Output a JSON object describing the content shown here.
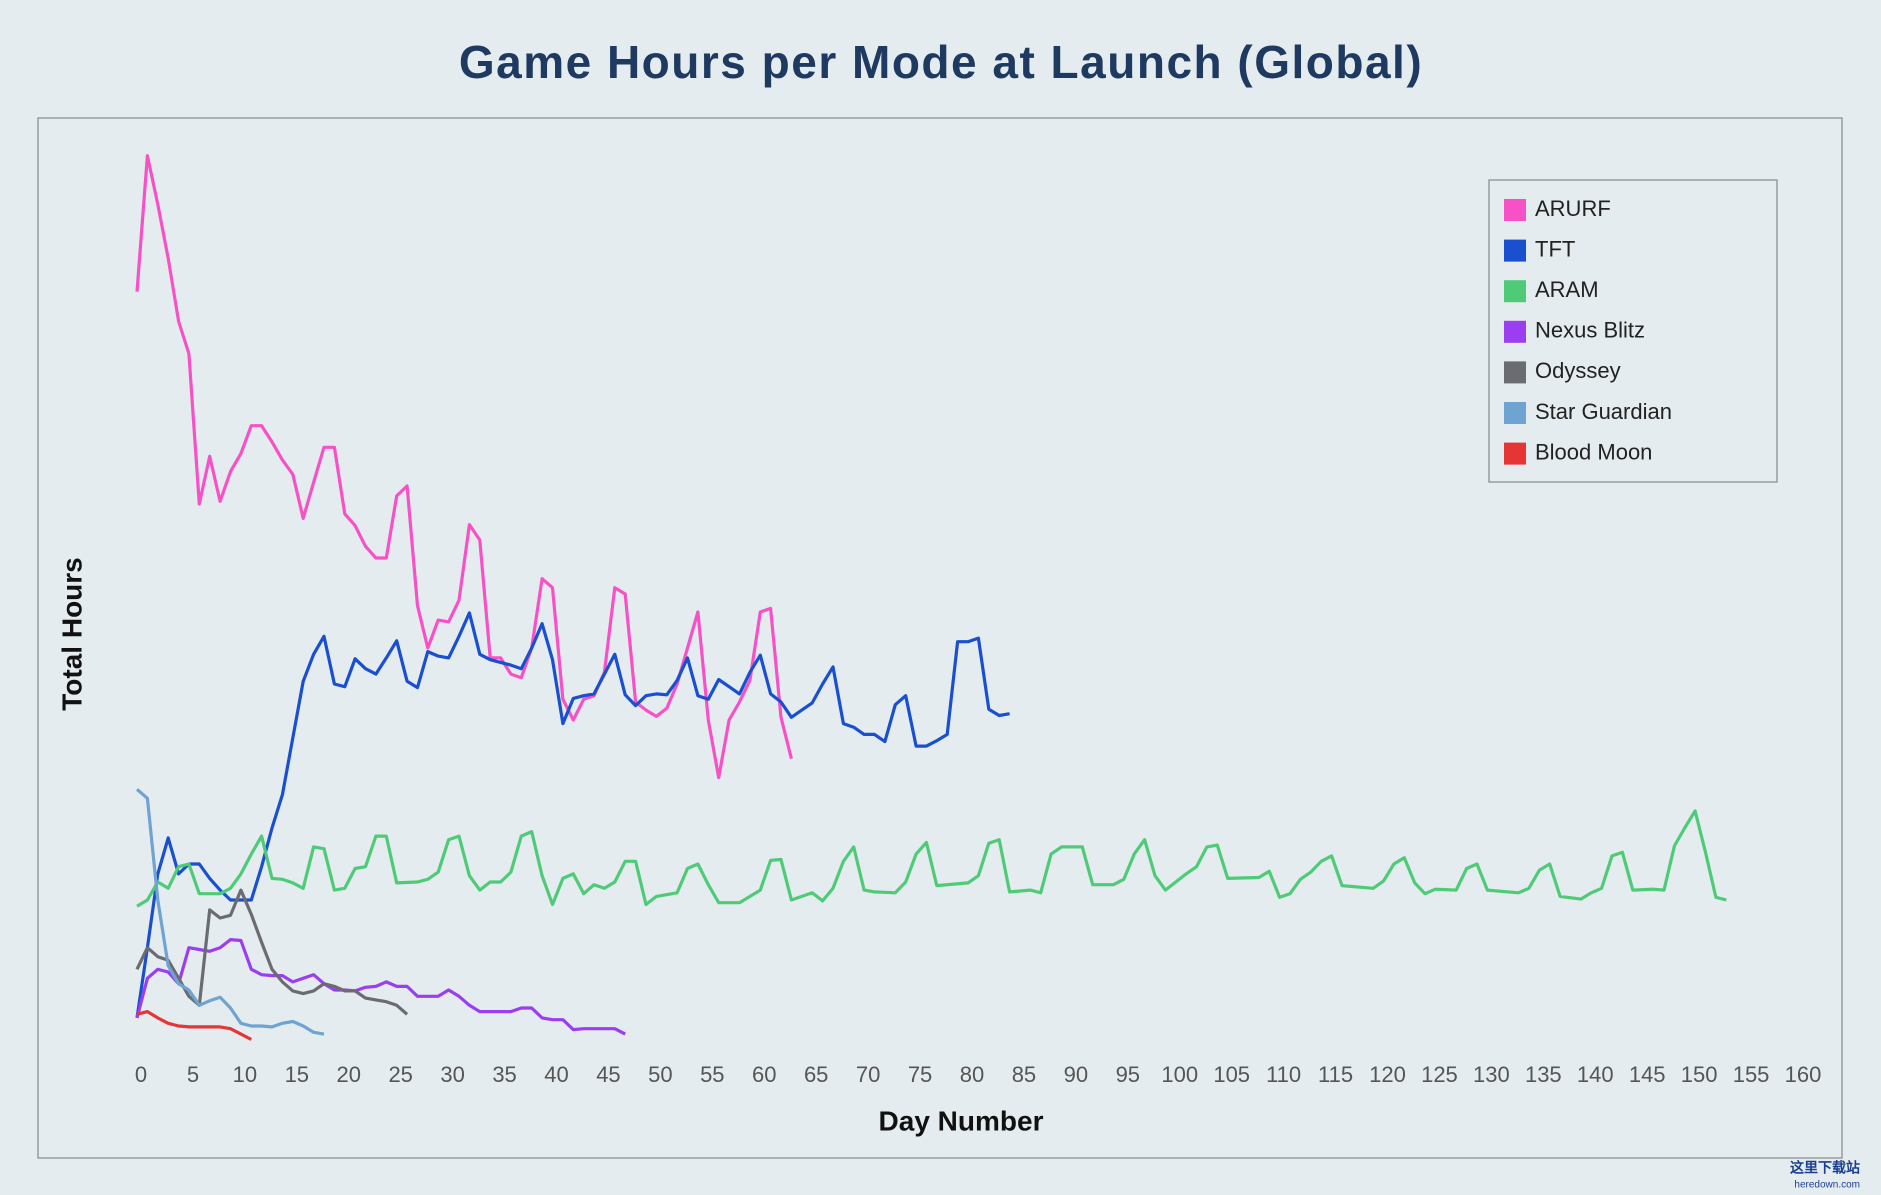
{
  "chart_data": {
    "type": "line",
    "title": "Game Hours per Mode at Launch (Global)",
    "x_label": "Day Number",
    "y_label": "Total Hours",
    "xlim": [
      0,
      160
    ],
    "ylim": [
      0,
      100
    ],
    "xticks": [
      0,
      5,
      10,
      15,
      20,
      25,
      30,
      35,
      40,
      45,
      50,
      55,
      60,
      65,
      70,
      75,
      80,
      85,
      90,
      95,
      100,
      105,
      110,
      115,
      120,
      125,
      130,
      135,
      140,
      145,
      150,
      155,
      160
    ],
    "grid": false,
    "legend": "upper right",
    "series": [
      {
        "name": "ARURF",
        "color": "#f752c5",
        "x": [
          0,
          1,
          2,
          3,
          4,
          5,
          6,
          7,
          8,
          9,
          10,
          11,
          12,
          13,
          14,
          15,
          16,
          17,
          18,
          19,
          20,
          21,
          22,
          23,
          24,
          25,
          26,
          27,
          28,
          29,
          30,
          31,
          32,
          33,
          34,
          35,
          36,
          37,
          38,
          39,
          40,
          41,
          42,
          43,
          44,
          45,
          46,
          47,
          48,
          49,
          50,
          51,
          52,
          53,
          54,
          55,
          56,
          57,
          58,
          59,
          60,
          61,
          62,
          63
        ],
        "values": [
          83.6,
          98.7,
          93.3,
          87.3,
          80.3,
          76.7,
          60,
          65.3,
          60.3,
          63.6,
          65.6,
          68.7,
          68.7,
          66.9,
          64.9,
          63.3,
          58.4,
          62.4,
          66.3,
          66.3,
          58.9,
          57.6,
          55.3,
          54,
          54,
          60.9,
          62,
          48.7,
          44,
          47.1,
          46.9,
          49.3,
          57.7,
          56,
          42.9,
          42.9,
          41.1,
          40.7,
          44,
          51.7,
          50.7,
          38.3,
          36,
          38.3,
          38.7,
          41.3,
          50.7,
          50,
          38,
          37.1,
          36.4,
          37.3,
          40,
          44,
          48,
          36,
          29.6,
          36,
          38,
          40.4,
          48,
          48.4,
          36.3,
          31.7
        ]
      },
      {
        "name": "TFT",
        "color": "#1a4fcf",
        "x": [
          0,
          1,
          2,
          3,
          4,
          5,
          6,
          7,
          8,
          9,
          10,
          11,
          12,
          13,
          14,
          15,
          16,
          17,
          18,
          19,
          20,
          21,
          22,
          23,
          24,
          25,
          26,
          27,
          28,
          29,
          30,
          31,
          32,
          33,
          34,
          35,
          36,
          37,
          38,
          39,
          40,
          41,
          42,
          43,
          44,
          45,
          46,
          47,
          48,
          49,
          50,
          51,
          52,
          53,
          54,
          55,
          56,
          57,
          58,
          59,
          60,
          61,
          62,
          63,
          64,
          65,
          66,
          67,
          68,
          69,
          70,
          71,
          72,
          73,
          74,
          75,
          76,
          77,
          78,
          79,
          80,
          81,
          82,
          83,
          84
        ],
        "values": [
          2.9,
          10.7,
          18.9,
          22.9,
          18.9,
          20,
          20,
          18.4,
          17.1,
          16,
          16,
          16,
          19.7,
          24,
          27.7,
          34,
          40.3,
          43.3,
          45.3,
          40,
          39.7,
          42.8,
          41.7,
          41.1,
          42.9,
          44.8,
          40.3,
          39.6,
          43.6,
          43.1,
          42.9,
          45.3,
          47.9,
          43.3,
          42.7,
          42.4,
          42.1,
          41.7,
          44,
          46.7,
          42.7,
          35.6,
          38.4,
          38.7,
          38.9,
          41.1,
          43.3,
          38.8,
          37.6,
          38.7,
          38.9,
          38.8,
          40.4,
          42.9,
          38.7,
          38.3,
          40.5,
          39.7,
          38.9,
          41.3,
          43.2,
          38.9,
          38,
          36.3,
          37.1,
          37.9,
          40,
          41.9,
          35.6,
          35.2,
          34.4,
          34.4,
          33.6,
          37.7,
          38.7,
          33.1,
          33.1,
          33.7,
          34.4,
          44.7,
          44.7,
          45.1,
          37.2,
          36.5,
          36.7
        ]
      },
      {
        "name": "ARAM",
        "color": "#4fcb78",
        "x": [
          0,
          1,
          2,
          3,
          4,
          5,
          6,
          7,
          8,
          9,
          10,
          11,
          12,
          13,
          14,
          15,
          16,
          17,
          18,
          19,
          20,
          21,
          22,
          23,
          24,
          25,
          27,
          28,
          29,
          30,
          31,
          32,
          33,
          34,
          35,
          36,
          37,
          38,
          39,
          40,
          41,
          42,
          43,
          44,
          45,
          46,
          47,
          48,
          49,
          50,
          52,
          53,
          54,
          55,
          56,
          58,
          60,
          61,
          62,
          63,
          65,
          66,
          67,
          68,
          69,
          70,
          71,
          73,
          74,
          75,
          76,
          77,
          80,
          81,
          82,
          83,
          84,
          86,
          87,
          88,
          89,
          91,
          92,
          94,
          95,
          96,
          97,
          98,
          99,
          100,
          101,
          102,
          103,
          104,
          105,
          108,
          109,
          110,
          111,
          112,
          113,
          114,
          115,
          116,
          119,
          120,
          121,
          122,
          123,
          124,
          125,
          127,
          128,
          129,
          130,
          133,
          134,
          135,
          136,
          137,
          139,
          140,
          141,
          142,
          143,
          144,
          146,
          147,
          148,
          149,
          150,
          151,
          152,
          153
        ],
        "values": [
          15.3,
          16,
          18,
          17.3,
          19.7,
          20,
          16.7,
          16.7,
          16.7,
          17.3,
          18.9,
          21.1,
          23.1,
          18.4,
          18.3,
          17.9,
          17.3,
          21.9,
          21.7,
          17.1,
          17.3,
          19.5,
          19.7,
          23.1,
          23.1,
          17.9,
          18,
          18.3,
          19.1,
          22.7,
          23.1,
          18.7,
          17.1,
          18,
          18,
          19.1,
          23.1,
          23.6,
          18.7,
          15.5,
          18.4,
          18.9,
          16.7,
          17.7,
          17.3,
          18,
          20.3,
          20.3,
          15.5,
          16.4,
          16.8,
          19.5,
          20,
          17.7,
          15.7,
          15.7,
          17.1,
          20.4,
          20.5,
          16,
          16.8,
          15.9,
          17.3,
          20.3,
          21.9,
          17.1,
          16.9,
          16.8,
          18,
          21.1,
          22.4,
          17.6,
          17.9,
          18.7,
          22.3,
          22.7,
          16.9,
          17.1,
          16.8,
          21.1,
          21.9,
          21.9,
          17.7,
          17.7,
          18.3,
          21.1,
          22.7,
          18.7,
          17.1,
          18,
          18.9,
          19.7,
          21.9,
          22.1,
          18.4,
          18.5,
          19.2,
          16.3,
          16.7,
          18.3,
          19.1,
          20.3,
          20.9,
          17.6,
          17.3,
          18.1,
          20,
          20.7,
          17.9,
          16.7,
          17.2,
          17.1,
          19.5,
          20,
          17.1,
          16.8,
          17.3,
          19.3,
          20,
          16.4,
          16.1,
          16.8,
          17.3,
          20.9,
          21.3,
          17.1,
          17.2,
          17.1,
          22,
          24,
          25.9,
          21.3,
          16.3,
          16
        ]
      },
      {
        "name": "Nexus Blitz",
        "color": "#9b3ef0",
        "x": [
          0,
          1,
          2,
          3,
          4,
          5,
          6,
          7,
          8,
          9,
          10,
          11,
          12,
          13,
          14,
          15,
          16,
          17,
          18,
          19,
          20,
          21,
          22,
          23,
          24,
          25,
          26,
          27,
          28,
          29,
          30,
          31,
          32,
          33,
          34,
          35,
          36,
          37,
          38,
          39,
          40,
          41,
          42,
          43,
          44,
          45,
          46,
          47
        ],
        "values": [
          2.9,
          7.3,
          8.3,
          8,
          6.7,
          10.7,
          10.5,
          10.3,
          10.7,
          11.6,
          11.5,
          8.3,
          7.7,
          7.6,
          7.6,
          6.9,
          7.3,
          7.7,
          6.7,
          6,
          6,
          5.9,
          6.3,
          6.4,
          6.9,
          6.4,
          6.4,
          5.3,
          5.3,
          5.3,
          6,
          5.3,
          4.3,
          3.6,
          3.6,
          3.6,
          3.6,
          4,
          4,
          2.9,
          2.7,
          2.7,
          1.6,
          1.7,
          1.7,
          1.7,
          1.7,
          1.1
        ]
      },
      {
        "name": "Odyssey",
        "color": "#6b6b72",
        "x": [
          0,
          1,
          2,
          3,
          4,
          5,
          6,
          7,
          8,
          9,
          10,
          11,
          12,
          13,
          14,
          15,
          16,
          17,
          18,
          19,
          20,
          21,
          22,
          23,
          24,
          25,
          26
        ],
        "values": [
          8.3,
          10.7,
          9.7,
          9.3,
          7.3,
          5.3,
          4.3,
          14.9,
          14,
          14.3,
          17.1,
          14.4,
          11.3,
          8.3,
          6.9,
          5.9,
          5.6,
          5.9,
          6.7,
          6.4,
          5.9,
          5.9,
          5.1,
          4.9,
          4.7,
          4.3,
          3.3
        ]
      },
      {
        "name": "Star Guardian",
        "color": "#6fa3d2",
        "x": [
          0,
          1,
          2,
          3,
          4,
          5,
          6,
          7,
          8,
          9,
          10,
          11,
          12,
          13,
          14,
          15,
          16,
          17,
          18
        ],
        "values": [
          28.3,
          27.3,
          16,
          8.7,
          6.7,
          6,
          4.3,
          4.8,
          5.2,
          4,
          2.3,
          2,
          2,
          1.9,
          2.3,
          2.5,
          2,
          1.3,
          1.1
        ]
      },
      {
        "name": "Blood Moon",
        "color": "#e53535",
        "x": [
          0,
          1,
          2,
          3,
          4,
          5,
          6,
          7,
          8,
          9,
          10,
          11
        ],
        "values": [
          3.3,
          3.6,
          2.9,
          2.3,
          2,
          1.9,
          1.9,
          1.9,
          1.9,
          1.7,
          1.1,
          0.5
        ]
      }
    ],
    "watermark": {
      "text": "这里下载站",
      "url": "heredown.com"
    }
  }
}
